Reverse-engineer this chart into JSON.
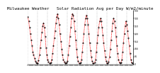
{
  "title": "Milwaukee Weather   Solar Radiation Avg per Day W/m2/minute",
  "title_fontsize": 4.2,
  "bg_color": "#ffffff",
  "line_color": "#ff0000",
  "marker_color": "#000000",
  "grid_color": "#888888",
  "y_min": 0,
  "y_max": 350,
  "yticks": [
    0,
    50,
    100,
    150,
    200,
    250,
    300,
    350
  ],
  "values": [
    310,
    280,
    240,
    200,
    160,
    120,
    80,
    60,
    40,
    20,
    10,
    5,
    8,
    25,
    60,
    110,
    160,
    210,
    250,
    270,
    240,
    180,
    110,
    60,
    30,
    15,
    8,
    5,
    12,
    30,
    70,
    120,
    170,
    220,
    270,
    310,
    330,
    300,
    260,
    200,
    150,
    100,
    60,
    30,
    15,
    8,
    5,
    10,
    20,
    60,
    120,
    180,
    240,
    300,
    330,
    320,
    280,
    220,
    160,
    100,
    50,
    20,
    8,
    5,
    10,
    30,
    80,
    140,
    200,
    260,
    300,
    320,
    300,
    260,
    200,
    140,
    90,
    50,
    20,
    8,
    5,
    10,
    30,
    80,
    140,
    190,
    240,
    280,
    300,
    280,
    240,
    190,
    140,
    90,
    50,
    20,
    8,
    5,
    15,
    50,
    100,
    160,
    220,
    270,
    300,
    280,
    240,
    180,
    120,
    70,
    30,
    10,
    5,
    10,
    30,
    80,
    140,
    200,
    250,
    280,
    260,
    220,
    170,
    120,
    70,
    30,
    10,
    5
  ]
}
